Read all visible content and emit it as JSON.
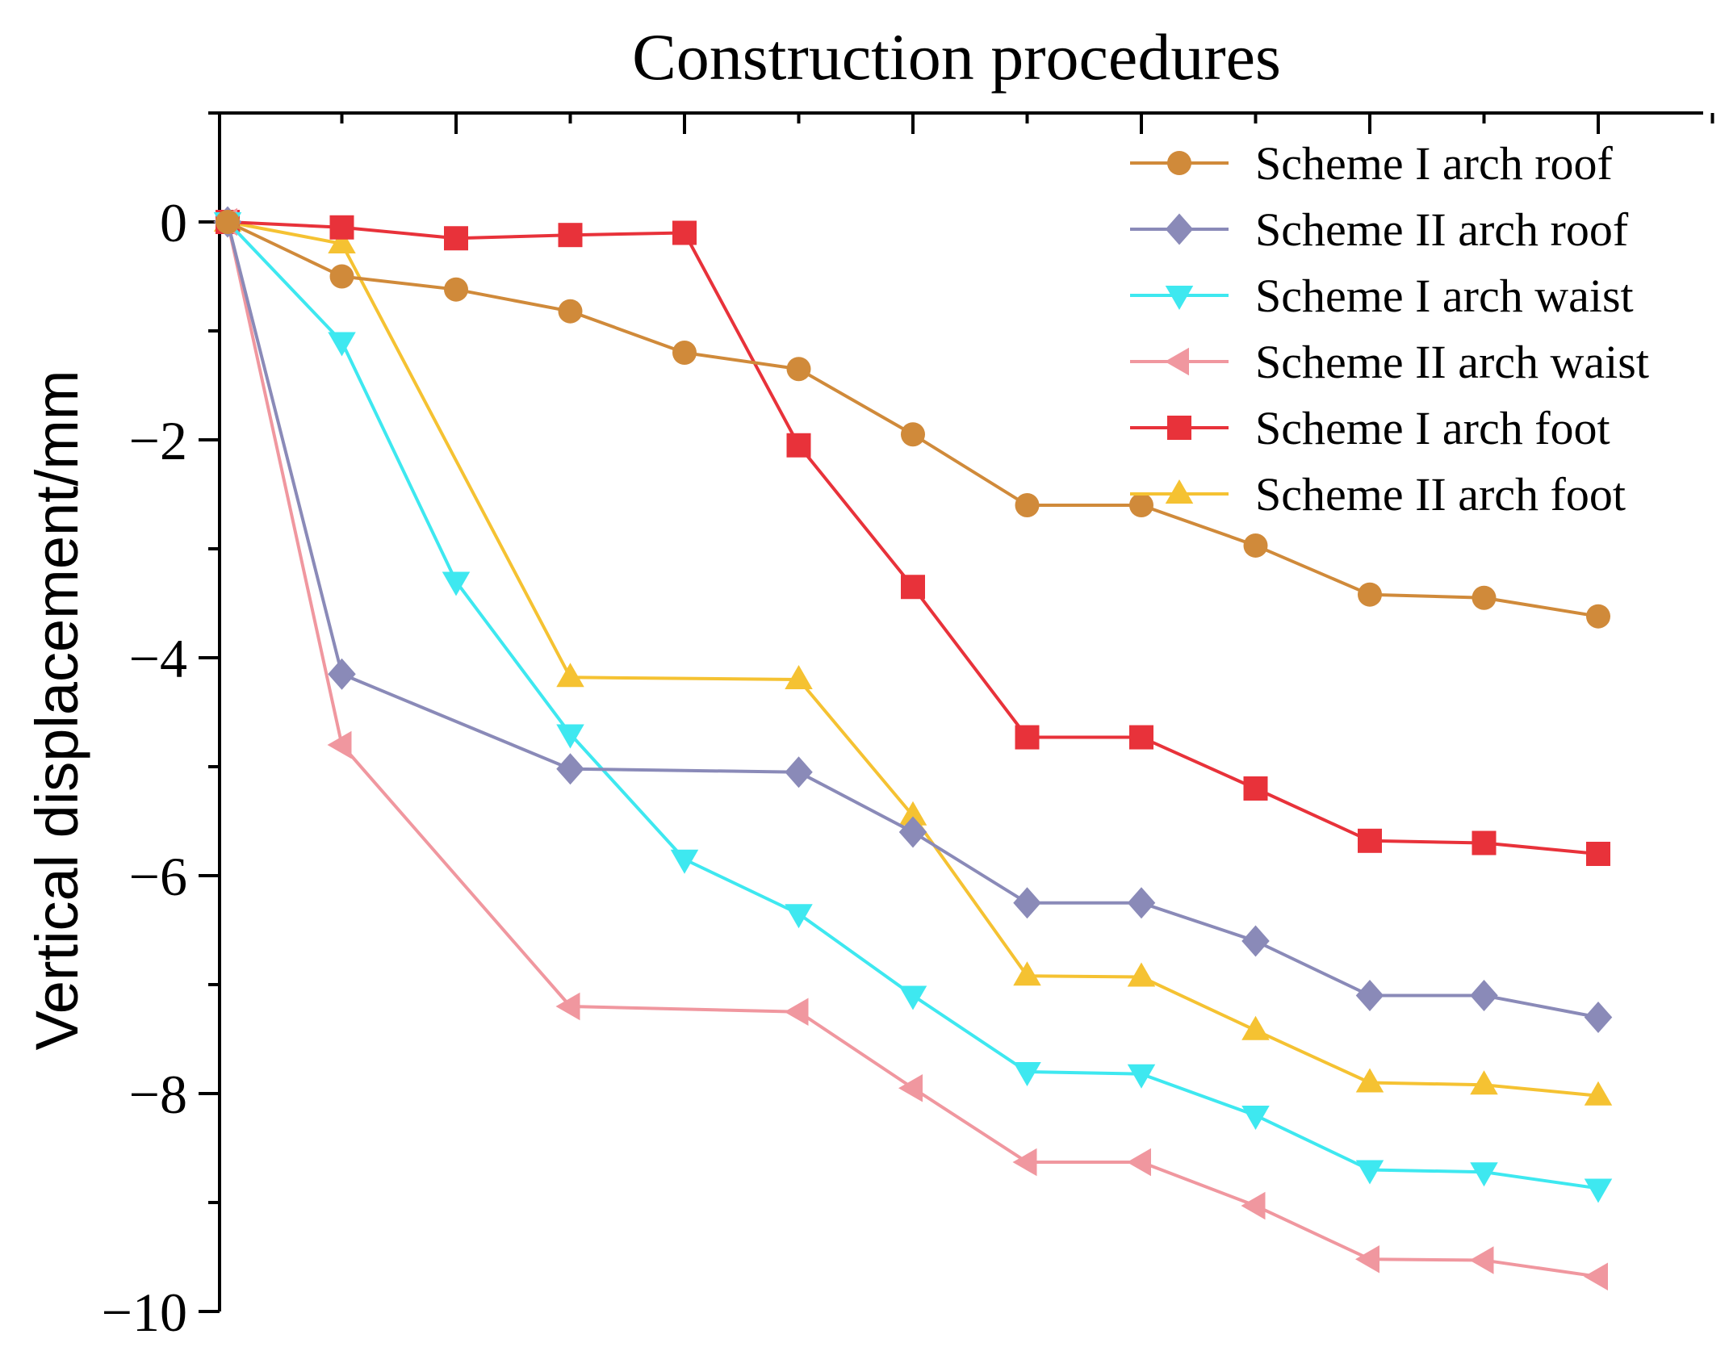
{
  "chart_data": {
    "type": "line",
    "title": "Construction procedures",
    "xlabel": "",
    "ylabel": "Vertical displacement/mm",
    "ylim": [
      -10,
      1
    ],
    "y_ticks": [
      0,
      -2,
      -4,
      -6,
      -8,
      -10
    ],
    "y_tick_labels": [
      "0",
      "−2",
      "−4",
      "−6",
      "−8",
      "−10"
    ],
    "x_range": [
      0,
      13
    ],
    "x_major_ticks": [
      2,
      4,
      6,
      8,
      10,
      12
    ],
    "x_minor_ticks": [
      1,
      3,
      5,
      7,
      9,
      11,
      13
    ],
    "grid": false,
    "legend_position": "top-right",
    "series": [
      {
        "name": "Scheme I arch roof",
        "color": "#d08a3a",
        "marker": "circle",
        "points": [
          [
            0,
            0
          ],
          [
            1,
            -0.5
          ],
          [
            2,
            -0.62
          ],
          [
            3,
            -0.82
          ],
          [
            4,
            -1.2
          ],
          [
            5,
            -1.35
          ],
          [
            6,
            -1.95
          ],
          [
            7,
            -2.6
          ],
          [
            8,
            -2.6
          ],
          [
            9,
            -2.97
          ],
          [
            10,
            -3.42
          ],
          [
            11,
            -3.45
          ],
          [
            12,
            -3.62
          ]
        ]
      },
      {
        "name": "Scheme II arch roof",
        "color": "#8a8ab8",
        "marker": "diamond",
        "points": [
          [
            0,
            0
          ],
          [
            1,
            -4.15
          ],
          [
            3,
            -5.02
          ],
          [
            5,
            -5.05
          ],
          [
            6,
            -5.6
          ],
          [
            7,
            -6.25
          ],
          [
            8,
            -6.25
          ],
          [
            9,
            -6.6
          ],
          [
            10,
            -7.1
          ],
          [
            11,
            -7.1
          ],
          [
            12,
            -7.3
          ]
        ]
      },
      {
        "name": "Scheme I arch waist",
        "color": "#3ee8f0",
        "marker": "triangle-down",
        "points": [
          [
            0,
            0
          ],
          [
            1,
            -1.1
          ],
          [
            2,
            -3.3
          ],
          [
            3,
            -4.7
          ],
          [
            4,
            -5.85
          ],
          [
            5,
            -6.35
          ],
          [
            6,
            -7.1
          ],
          [
            7,
            -7.8
          ],
          [
            8,
            -7.82
          ],
          [
            9,
            -8.2
          ],
          [
            10,
            -8.7
          ],
          [
            11,
            -8.72
          ],
          [
            12,
            -8.87
          ]
        ]
      },
      {
        "name": "Scheme II arch waist",
        "color": "#f0979f",
        "marker": "triangle-left",
        "points": [
          [
            0,
            0
          ],
          [
            1,
            -4.8
          ],
          [
            3,
            -7.2
          ],
          [
            5,
            -7.25
          ],
          [
            6,
            -7.95
          ],
          [
            7,
            -8.63
          ],
          [
            8,
            -8.63
          ],
          [
            9,
            -9.03
          ],
          [
            10,
            -9.52
          ],
          [
            11,
            -9.53
          ],
          [
            12,
            -9.68
          ]
        ]
      },
      {
        "name": "Scheme I arch foot",
        "color": "#e8323a",
        "marker": "square",
        "points": [
          [
            0,
            0
          ],
          [
            1,
            -0.05
          ],
          [
            2,
            -0.15
          ],
          [
            3,
            -0.12
          ],
          [
            4,
            -0.1
          ],
          [
            5,
            -2.05
          ],
          [
            6,
            -3.35
          ],
          [
            7,
            -4.73
          ],
          [
            8,
            -4.73
          ],
          [
            9,
            -5.2
          ],
          [
            10,
            -5.68
          ],
          [
            11,
            -5.7
          ],
          [
            12,
            -5.8
          ]
        ]
      },
      {
        "name": "Scheme II arch foot",
        "color": "#f5c232",
        "marker": "triangle-up",
        "points": [
          [
            0,
            0
          ],
          [
            1,
            -0.2
          ],
          [
            3,
            -4.18
          ],
          [
            5,
            -4.2
          ],
          [
            6,
            -5.45
          ],
          [
            7,
            -6.92
          ],
          [
            8,
            -6.93
          ],
          [
            9,
            -7.42
          ],
          [
            10,
            -7.9
          ],
          [
            11,
            -7.92
          ],
          [
            12,
            -8.02
          ]
        ]
      }
    ]
  }
}
